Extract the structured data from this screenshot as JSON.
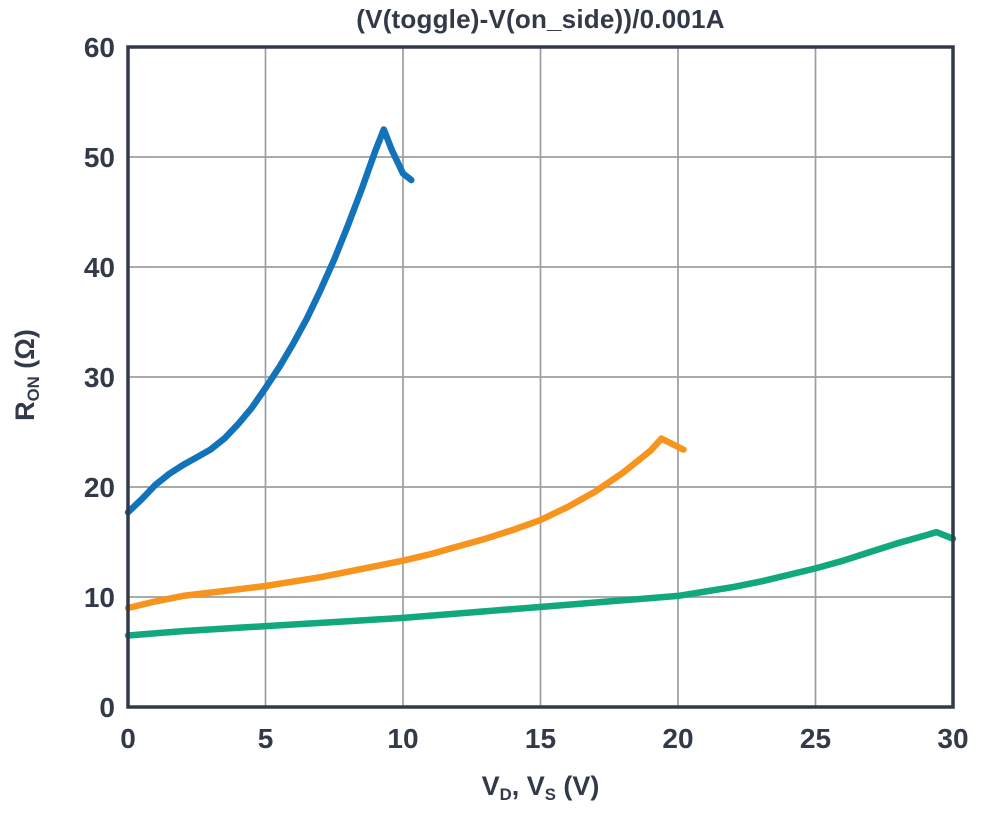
{
  "chart_data": {
    "type": "line",
    "title": "(V(toggle)-V(on_side))/0.001A",
    "xlabel": "V_D, V_S (V)",
    "ylabel": "R_ON (Ω)",
    "xlabel_parts": {
      "p1": "V",
      "s1": "D",
      "p2": ", V",
      "s2": "S",
      "p3": " (V)"
    },
    "ylabel_parts": {
      "p1": "R",
      "s1": "ON",
      "p2": " (Ω)"
    },
    "x_axis": {
      "min": 0,
      "max": 30,
      "ticks": [
        0,
        5,
        10,
        15,
        20,
        25,
        30
      ]
    },
    "y_axis": {
      "min": 0,
      "max": 60,
      "ticks": [
        0,
        10,
        20,
        30,
        40,
        50,
        60
      ]
    },
    "grid": true,
    "legend": "none",
    "colors": {
      "axis": "#323A49",
      "grid": "#9C9EA1",
      "background": "#FFFFFF"
    },
    "series": [
      {
        "name": "blue-curve",
        "color": "#1272BA",
        "points": [
          [
            0,
            17.7
          ],
          [
            0.5,
            18.9
          ],
          [
            1,
            20.2
          ],
          [
            1.5,
            21.2
          ],
          [
            2,
            22.0
          ],
          [
            2.5,
            22.7
          ],
          [
            3,
            23.4
          ],
          [
            3.5,
            24.4
          ],
          [
            4,
            25.7
          ],
          [
            4.5,
            27.2
          ],
          [
            5,
            29.0
          ],
          [
            5.5,
            30.9
          ],
          [
            6,
            33.0
          ],
          [
            6.5,
            35.3
          ],
          [
            7,
            37.9
          ],
          [
            7.5,
            40.7
          ],
          [
            8,
            43.8
          ],
          [
            8.5,
            47.1
          ],
          [
            9,
            50.6
          ],
          [
            9.3,
            52.5
          ],
          [
            9.6,
            50.6
          ],
          [
            10,
            48.5
          ],
          [
            10.3,
            47.9
          ]
        ]
      },
      {
        "name": "orange-curve",
        "color": "#F7941E",
        "points": [
          [
            0,
            9.0
          ],
          [
            1,
            9.6
          ],
          [
            2,
            10.1
          ],
          [
            3,
            10.4
          ],
          [
            4,
            10.7
          ],
          [
            5,
            11.0
          ],
          [
            6,
            11.4
          ],
          [
            7,
            11.8
          ],
          [
            8,
            12.3
          ],
          [
            9,
            12.8
          ],
          [
            10,
            13.3
          ],
          [
            11,
            13.9
          ],
          [
            12,
            14.6
          ],
          [
            13,
            15.3
          ],
          [
            14,
            16.1
          ],
          [
            15,
            17.0
          ],
          [
            16,
            18.2
          ],
          [
            17,
            19.6
          ],
          [
            18,
            21.3
          ],
          [
            19,
            23.3
          ],
          [
            19.4,
            24.4
          ],
          [
            20.2,
            23.4
          ]
        ]
      },
      {
        "name": "green-curve",
        "color": "#10A87C",
        "points": [
          [
            0,
            6.5
          ],
          [
            2,
            6.9
          ],
          [
            4,
            7.2
          ],
          [
            6,
            7.5
          ],
          [
            8,
            7.8
          ],
          [
            10,
            8.1
          ],
          [
            12,
            8.5
          ],
          [
            14,
            8.9
          ],
          [
            16,
            9.3
          ],
          [
            18,
            9.7
          ],
          [
            20,
            10.1
          ],
          [
            21,
            10.5
          ],
          [
            22,
            10.9
          ],
          [
            23,
            11.4
          ],
          [
            24,
            12.0
          ],
          [
            25,
            12.6
          ],
          [
            26,
            13.3
          ],
          [
            27,
            14.1
          ],
          [
            28,
            14.9
          ],
          [
            29,
            15.6
          ],
          [
            29.4,
            15.9
          ],
          [
            30,
            15.3
          ]
        ]
      }
    ]
  }
}
